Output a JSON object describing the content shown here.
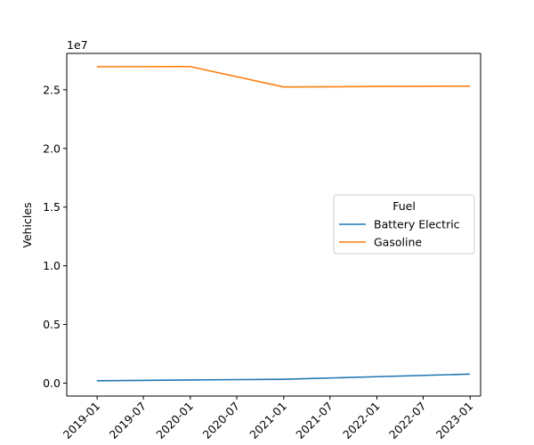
{
  "chart_data": {
    "type": "line",
    "title": "",
    "xlabel": "",
    "ylabel": "Vehicles",
    "y_offset_text": "1e7",
    "y_multiplier": 10000000,
    "grid": false,
    "legend": {
      "title": "Fuel",
      "placement": "center-right"
    },
    "x_ticks": [
      "2019-01",
      "2019-07",
      "2020-01",
      "2020-07",
      "2021-01",
      "2021-07",
      "2022-01",
      "2022-07",
      "2023-01"
    ],
    "x_tick_dates": [
      "2019-01-01",
      "2019-07-01",
      "2020-01-01",
      "2020-07-01",
      "2021-01-01",
      "2021-07-01",
      "2022-01-01",
      "2022-07-01",
      "2023-01-01"
    ],
    "y_ticks": [
      "0.0",
      "0.5",
      "1.0",
      "1.5",
      "2.0",
      "2.5"
    ],
    "y_tick_values": [
      0,
      5000000,
      10000000,
      15000000,
      20000000,
      25000000
    ],
    "xlim": [
      "2018-09-04",
      "2023-02-11"
    ],
    "ylim": [
      -1100000,
      28100000
    ],
    "x": [
      "2018-12-31",
      "2019-12-31",
      "2020-12-31",
      "2021-12-31",
      "2022-12-31"
    ],
    "series": [
      {
        "name": "Battery Electric",
        "color": "#1f77b4",
        "values": [
          200000,
          270000,
          330000,
          550000,
          770000
        ]
      },
      {
        "name": "Gasoline",
        "color": "#ff7f0e",
        "values": [
          26970000,
          26980000,
          25240000,
          25280000,
          25310000
        ]
      }
    ]
  }
}
